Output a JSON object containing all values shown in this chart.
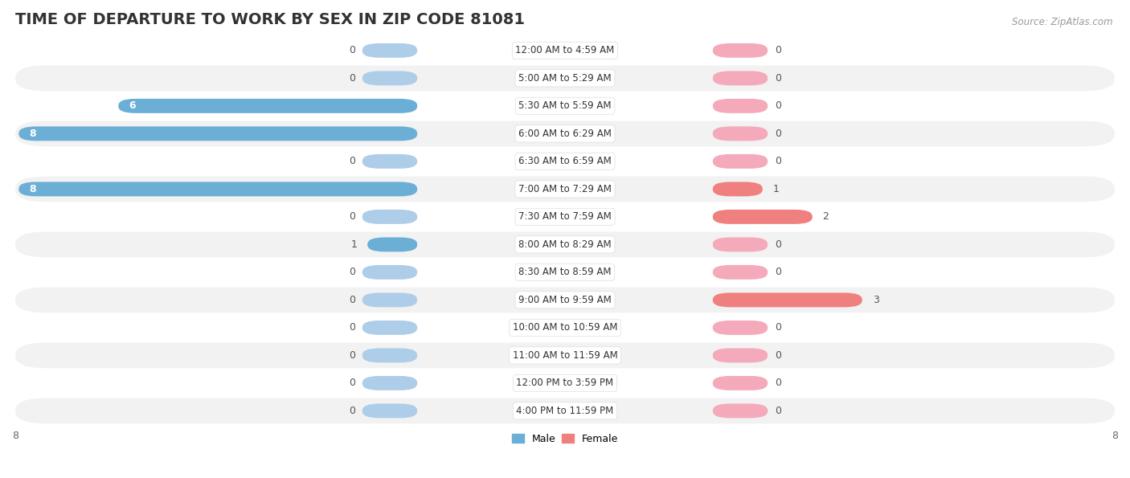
{
  "title": "Time of Departure to Work by Sex in Zip Code 81081",
  "source": "Source: ZipAtlas.com",
  "categories": [
    "12:00 AM to 4:59 AM",
    "5:00 AM to 5:29 AM",
    "5:30 AM to 5:59 AM",
    "6:00 AM to 6:29 AM",
    "6:30 AM to 6:59 AM",
    "7:00 AM to 7:29 AM",
    "7:30 AM to 7:59 AM",
    "8:00 AM to 8:29 AM",
    "8:30 AM to 8:59 AM",
    "9:00 AM to 9:59 AM",
    "10:00 AM to 10:59 AM",
    "11:00 AM to 11:59 AM",
    "12:00 PM to 3:59 PM",
    "4:00 PM to 11:59 PM"
  ],
  "male_values": [
    0,
    0,
    6,
    8,
    0,
    8,
    0,
    1,
    0,
    0,
    0,
    0,
    0,
    0
  ],
  "female_values": [
    0,
    0,
    0,
    0,
    0,
    1,
    2,
    0,
    0,
    3,
    0,
    0,
    0,
    0
  ],
  "male_color": "#6BAED6",
  "female_color": "#F08080",
  "male_stub_color": "#AECDE8",
  "female_stub_color": "#F4AABA",
  "bg_color": "#FFFFFF",
  "row_color_odd": "#F2F2F2",
  "row_color_even": "#FFFFFF",
  "axis_max": 8,
  "title_fontsize": 14,
  "label_fontsize": 8.5,
  "tick_fontsize": 9,
  "source_fontsize": 8.5,
  "bar_val_label_fontsize": 9
}
